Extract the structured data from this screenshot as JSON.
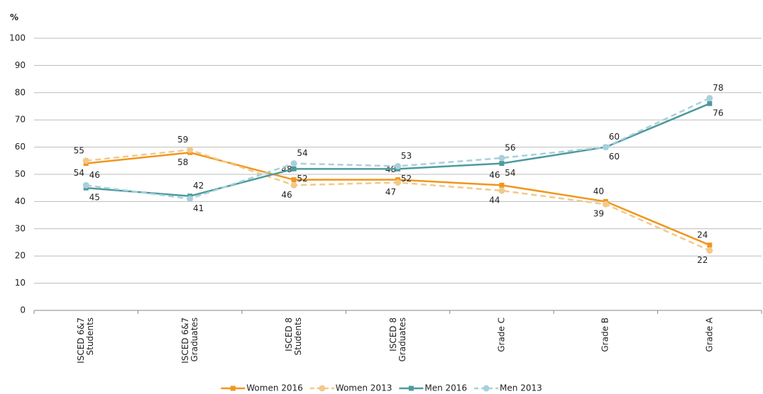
{
  "chart_data": {
    "type": "line",
    "y_axis_label": "%",
    "categories": [
      "ISCED 6&7\nStudents",
      "ISCED 6&7\nGraduates",
      "ISCED 8\nStudents",
      "ISCED 8\nGraduates",
      "Grade C",
      "Grade B",
      "Grade A"
    ],
    "ylim": [
      0,
      100
    ],
    "yticks": [
      0,
      10,
      20,
      30,
      40,
      50,
      60,
      70,
      80,
      90,
      100
    ],
    "grid": true,
    "legend": "bottom",
    "series": [
      {
        "name": "Women 2016",
        "color": "#f0961e",
        "dashed": false,
        "marker": "square",
        "values": [
          54,
          58,
          48,
          48,
          46,
          40,
          24
        ]
      },
      {
        "name": "Women 2013",
        "color": "#f2c98a",
        "dashed": true,
        "marker": "circle",
        "values": [
          55,
          59,
          46,
          47,
          44,
          39,
          22
        ]
      },
      {
        "name": "Men 2016",
        "color": "#4d9a9c",
        "dashed": false,
        "marker": "square",
        "values": [
          45,
          42,
          52,
          52,
          54,
          60,
          76
        ]
      },
      {
        "name": "Men 2013",
        "color": "#a9cfdc",
        "dashed": true,
        "marker": "circle",
        "values": [
          46,
          41,
          54,
          53,
          56,
          60,
          78
        ]
      }
    ]
  }
}
